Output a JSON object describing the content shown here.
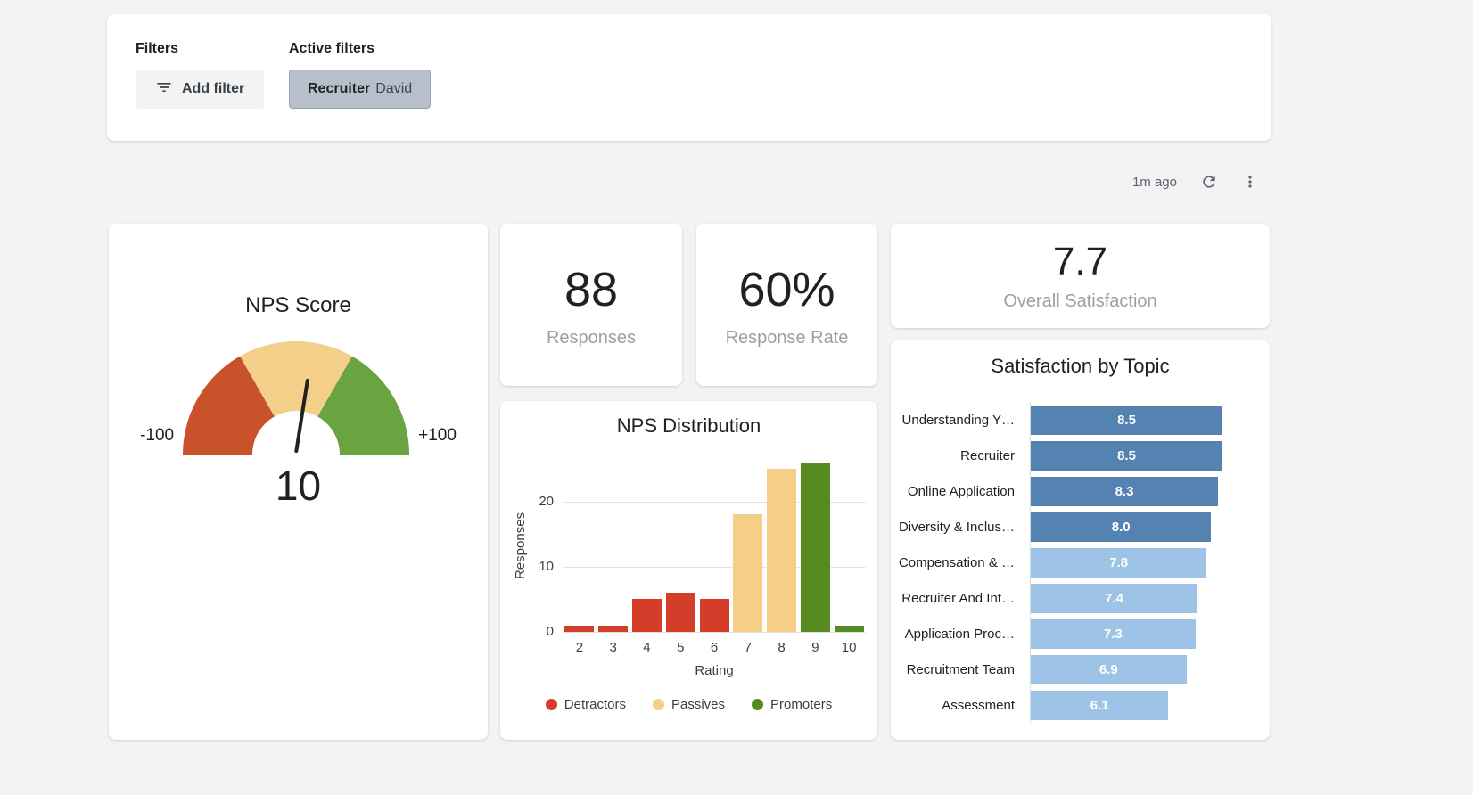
{
  "filters": {
    "title": "Filters",
    "active_title": "Active filters",
    "add_button_label": "Add filter",
    "active_chip": {
      "label": "Recruiter",
      "value": "David"
    }
  },
  "toolbar": {
    "last_updated": "1m ago",
    "refresh_icon": "refresh-icon",
    "menu_icon": "kebab-menu-icon"
  },
  "stat_cards": [
    {
      "value": "88",
      "label": "Responses"
    },
    {
      "value": "60%",
      "label": "Response Rate"
    }
  ],
  "overall_satisfaction": {
    "value": "7.7",
    "label": "Overall Satisfaction"
  },
  "colors": {
    "detractor": "#d33d2a",
    "passive": "#f5cf86",
    "promoter": "#568b22",
    "topic_high": "#5583b1",
    "topic_low": "#9dc3e6"
  },
  "chart_data": [
    {
      "type": "gauge",
      "title": "NPS Score",
      "min": -100,
      "max": 100,
      "min_label": "-100",
      "max_label": "+100",
      "value": 10,
      "value_label": "10",
      "segments": [
        {
          "name": "detractor-zone",
          "color": "#c8522c",
          "from": -100,
          "to": -33
        },
        {
          "name": "passive-zone",
          "color": "#f3cf8a",
          "from": -33,
          "to": 33
        },
        {
          "name": "promoter-zone",
          "color": "#6aa441",
          "from": 33,
          "to": 100
        }
      ]
    },
    {
      "type": "bar",
      "title": "NPS Distribution",
      "xlabel": "Rating",
      "ylabel": "Responses",
      "categories": [
        "2",
        "3",
        "4",
        "5",
        "6",
        "7",
        "8",
        "9",
        "10"
      ],
      "values": [
        1,
        1,
        5,
        6,
        5,
        18,
        25,
        26,
        1
      ],
      "bar_colors": [
        "#d33d2a",
        "#d33d2a",
        "#d33d2a",
        "#d33d2a",
        "#d33d2a",
        "#f5cf86",
        "#f5cf86",
        "#568b22",
        "#568b22"
      ],
      "yticks": [
        0,
        10,
        20
      ],
      "ylim": [
        0,
        26
      ],
      "grid": true,
      "legend_position": "bottom",
      "legend": [
        {
          "label": "Detractors",
          "color": "#d33d2a"
        },
        {
          "label": "Passives",
          "color": "#f5cf86"
        },
        {
          "label": "Promoters",
          "color": "#568b22"
        }
      ]
    },
    {
      "type": "bar",
      "orientation": "horizontal",
      "title": "Satisfaction by Topic",
      "categories": [
        "Understanding Y…",
        "Recruiter",
        "Online Application",
        "Diversity & Inclus…",
        "Compensation & …",
        "Recruiter And Int…",
        "Application Proc…",
        "Recruitment Team",
        "Assessment"
      ],
      "values": [
        8.5,
        8.5,
        8.3,
        8.0,
        7.8,
        7.4,
        7.3,
        6.9,
        6.1
      ],
      "value_labels": [
        "8.5",
        "8.5",
        "8.3",
        "8.0",
        "7.8",
        "7.4",
        "7.3",
        "6.9",
        "6.1"
      ],
      "bar_colors": [
        "#5583b1",
        "#5583b1",
        "#5583b1",
        "#5583b1",
        "#9dc3e6",
        "#9dc3e6",
        "#9dc3e6",
        "#9dc3e6",
        "#9dc3e6"
      ],
      "xlim": [
        0,
        10
      ]
    }
  ]
}
